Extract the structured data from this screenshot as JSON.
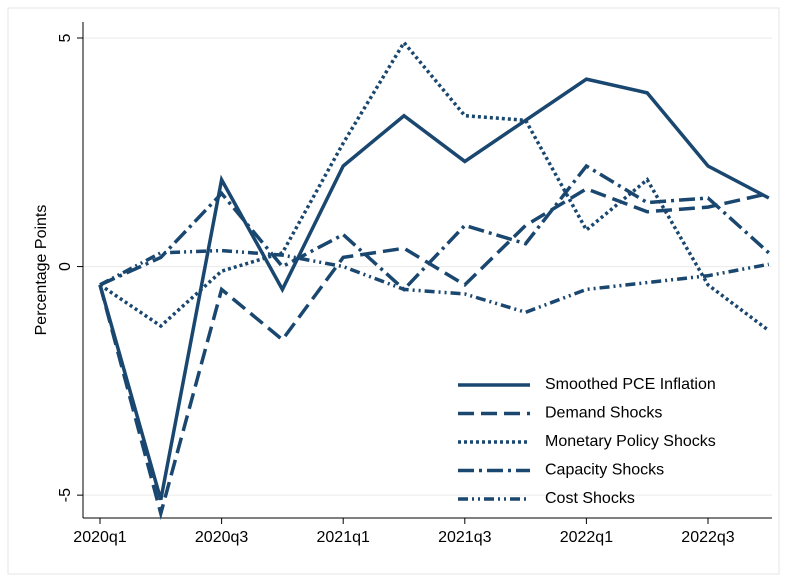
{
  "chart_data": {
    "type": "line",
    "y_label": "Percentage Points",
    "categories": [
      "2020q1",
      null,
      "2020q3",
      null,
      "2021q1",
      null,
      "2021q3",
      null,
      "2022q1",
      null,
      "2022q3",
      null
    ],
    "series": [
      {
        "name": "Smoothed PCE Inflation",
        "color": "#1a476f",
        "dash": "solid",
        "values": [
          -0.4,
          -5.1,
          1.9,
          -0.5,
          2.2,
          3.3,
          2.3,
          3.2,
          4.1,
          3.8,
          2.2,
          1.5
        ]
      },
      {
        "name": "Demand Shocks",
        "color": "#1a476f",
        "dash": "dashed",
        "values": [
          -0.4,
          -5.4,
          -0.5,
          -1.6,
          0.2,
          0.4,
          -0.4,
          0.9,
          1.7,
          1.2,
          1.3,
          1.6
        ]
      },
      {
        "name": "Monetary Policy Shocks",
        "color": "#1a476f",
        "dash": "dotted",
        "values": [
          -0.4,
          -1.3,
          -0.1,
          0.3,
          2.7,
          4.9,
          3.3,
          3.2,
          0.8,
          1.9,
          -0.4,
          -1.4
        ]
      },
      {
        "name": "Capacity Shocks",
        "color": "#1a476f",
        "dash": "dashdot",
        "values": [
          -0.4,
          0.2,
          1.6,
          0.0,
          0.7,
          -0.5,
          0.9,
          0.5,
          2.2,
          1.4,
          1.5,
          0.3
        ]
      },
      {
        "name": "Cost Shocks",
        "color": "#1a476f",
        "dash": "dashdotdot",
        "values": [
          -0.4,
          0.3,
          0.35,
          0.25,
          0.0,
          -0.5,
          -0.6,
          -1.0,
          -0.5,
          -0.35,
          -0.2,
          0.05
        ]
      }
    ],
    "ylim": [
      -5.5,
      5.35
    ],
    "yticks": [
      -5,
      0,
      5
    ],
    "grid": true,
    "legend": "lower-right"
  }
}
